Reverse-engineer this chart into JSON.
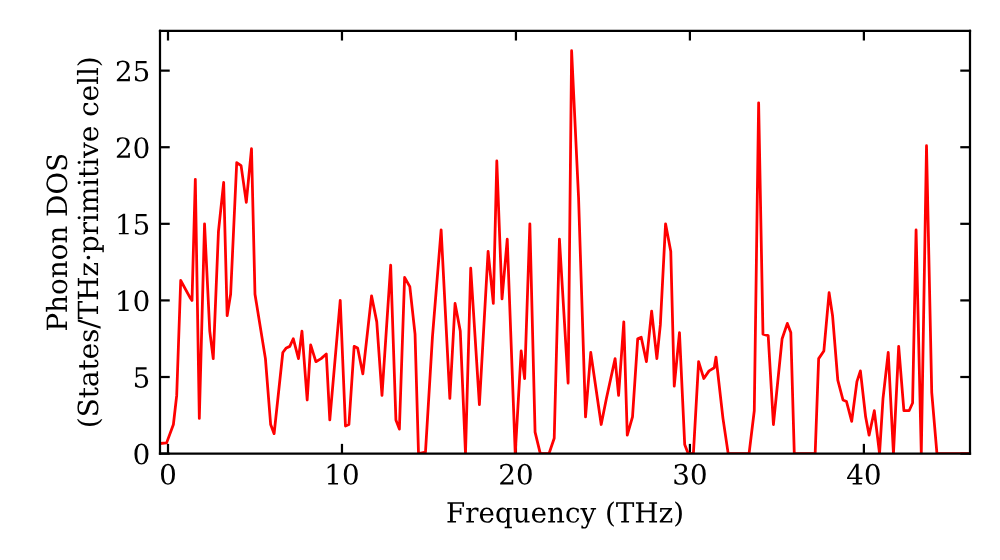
{
  "chart_data": {
    "type": "line",
    "xlabel": "Frequency (THz)",
    "ylabel": "Phonon DOS\n(States/THz·primitive cell)",
    "xlim": [
      -0.46,
      46.1
    ],
    "ylim": [
      0,
      27.6
    ],
    "xticks": [
      0,
      10,
      20,
      30,
      40
    ],
    "yticks": [
      0,
      5,
      10,
      15,
      20,
      25
    ],
    "grid": false,
    "legend": false,
    "marker": "none",
    "line_style": "solid",
    "series": [
      {
        "color": "#ff0000",
        "x": [
          -0.46,
          -0.08,
          0.31,
          0.5,
          0.73,
          1.26,
          1.38,
          1.57,
          1.8,
          2.1,
          2.4,
          2.6,
          2.9,
          3.2,
          3.4,
          3.6,
          3.95,
          4.2,
          4.5,
          4.8,
          5.0,
          5.6,
          5.9,
          6.1,
          6.6,
          6.8,
          7.0,
          7.2,
          7.5,
          7.7,
          8.0,
          8.2,
          8.5,
          8.8,
          9.1,
          9.3,
          9.9,
          10.2,
          10.4,
          10.7,
          10.9,
          11.2,
          11.7,
          12.0,
          12.3,
          12.8,
          13.1,
          13.3,
          13.6,
          13.9,
          14.2,
          14.4,
          14.8,
          15.2,
          15.7,
          16.2,
          16.5,
          16.8,
          17.1,
          17.4,
          17.9,
          18.4,
          18.7,
          18.9,
          19.2,
          19.5,
          19.96,
          20.3,
          20.5,
          20.8,
          21.1,
          21.4,
          21.9,
          22.2,
          22.5,
          23.0,
          23.2,
          23.6,
          24.0,
          24.3,
          24.9,
          25.2,
          25.7,
          25.9,
          26.2,
          26.4,
          26.7,
          27.0,
          27.2,
          27.5,
          27.8,
          28.1,
          28.3,
          28.6,
          28.9,
          29.1,
          29.4,
          29.7,
          29.9,
          30.2,
          30.5,
          30.8,
          31.1,
          31.4,
          31.5,
          31.9,
          32.2,
          33.4,
          33.7,
          33.95,
          34.2,
          34.5,
          34.8,
          35.3,
          35.6,
          35.8,
          36.0,
          37.2,
          37.4,
          37.7,
          38.0,
          38.2,
          38.5,
          38.8,
          39.0,
          39.3,
          39.6,
          39.8,
          40.1,
          40.3,
          40.6,
          40.9,
          41.1,
          41.4,
          41.7,
          42.0,
          42.3,
          42.6,
          42.8,
          43.0,
          43.3,
          43.6,
          43.9,
          44.2,
          46.1
        ],
        "values": [
          0.66,
          0.7,
          1.9,
          3.8,
          11.3,
          10.2,
          10,
          17.9,
          2.3,
          15,
          8,
          6.2,
          14.5,
          17.7,
          9,
          10.4,
          19,
          18.8,
          16.4,
          19.9,
          10.4,
          6.2,
          1.9,
          1.3,
          6.6,
          6.9,
          7,
          7.5,
          6.2,
          8,
          3.5,
          7.1,
          6,
          6.2,
          6.5,
          2.2,
          10,
          1.8,
          1.9,
          7,
          6.9,
          5.2,
          10.3,
          8.6,
          3.8,
          12.3,
          2.2,
          1.6,
          11.5,
          10.9,
          7.8,
          0,
          0.1,
          7.6,
          14.6,
          3.6,
          9.8,
          8,
          0,
          12.1,
          3.2,
          13.2,
          9.8,
          19.1,
          10.1,
          14,
          0,
          6.7,
          4.9,
          15,
          1.4,
          0,
          0,
          1,
          14,
          4.6,
          26.3,
          16.7,
          2.4,
          6.6,
          1.9,
          3.6,
          6.2,
          3.8,
          8.6,
          1.2,
          2.4,
          7.5,
          7.6,
          6,
          9.3,
          6.2,
          8.4,
          15,
          13.2,
          4.4,
          7.9,
          0.6,
          0,
          0,
          6,
          4.9,
          5.4,
          5.6,
          6.3,
          2.3,
          0,
          0,
          2.8,
          22.9,
          7.8,
          7.7,
          1.9,
          7.5,
          8.5,
          7.9,
          0,
          0,
          6.2,
          6.7,
          10.5,
          9,
          4.8,
          3.5,
          3.4,
          2.1,
          4.7,
          5.4,
          2.4,
          1.2,
          2.8,
          0,
          3.6,
          6.6,
          0,
          7,
          2.8,
          2.8,
          3.3,
          14.6,
          0,
          20.1,
          4,
          0,
          0
        ]
      }
    ]
  }
}
